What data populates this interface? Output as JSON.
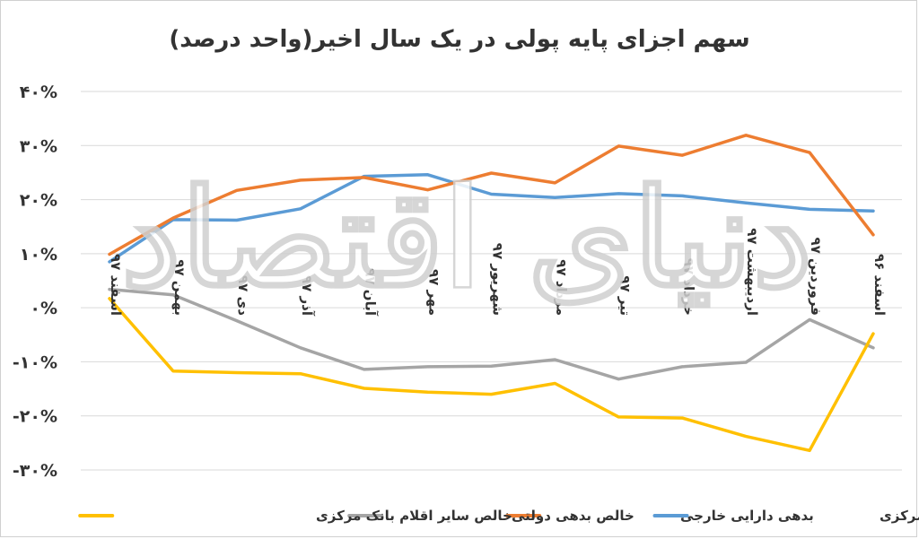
{
  "chart_data": {
    "type": "line",
    "title": "سهم اجزای پایه پولی در یک سال اخیر(واحد درصد)",
    "watermark": "دنیای اقتصاد",
    "ylim": [
      -30,
      40
    ],
    "yticks": [
      40,
      30,
      20,
      10,
      0,
      -10,
      -20,
      -30
    ],
    "ytick_labels": [
      "۴۰%",
      "۳۰%",
      "۲۰%",
      "۱۰%",
      "۰%",
      "-۱۰%",
      "-۲۰%",
      "-۳۰%"
    ],
    "categories": [
      "اسفند ۹۶",
      "فروردین ۹۷",
      "اردیبهشت ۹۷",
      "خرداد ۹۷",
      "تیر ۹۷",
      "مرداد ۹۷",
      "شهریور ۹۷",
      "مهر ۹۷",
      "آبان ۹۷",
      "آذر ۹۷",
      "دی ۹۷",
      "بهمن ۹۷",
      "اسفند ۹۷"
    ],
    "grid": true,
    "legend_position": "bottom",
    "series": [
      {
        "name": "بدهی بانک‌ها به بانک مرکزی",
        "color": "#5B9BD5",
        "values": [
          17.9,
          18.2,
          19.4,
          20.7,
          21.1,
          20.4,
          21.0,
          24.6,
          24.3,
          18.3,
          16.2,
          16.3,
          8.5
        ]
      },
      {
        "name": "بدهی دارایی خارجی",
        "color": "#ED7D31",
        "values": [
          13.5,
          28.7,
          31.9,
          28.2,
          29.9,
          23.1,
          24.9,
          21.8,
          24.1,
          23.6,
          21.7,
          16.6,
          9.9
        ]
      },
      {
        "name": "خالص بدهی دولتی",
        "color": "#A5A5A5",
        "values": [
          -7.4,
          -2.2,
          -10.1,
          -10.9,
          -13.2,
          -9.6,
          -10.8,
          -10.9,
          -11.4,
          -7.4,
          -2.4,
          2.4,
          3.4
        ]
      },
      {
        "name": "خالص سایر اقلام بانک مرکزی",
        "color": "#FFC000",
        "values": [
          -4.8,
          -26.4,
          -23.8,
          -20.4,
          -20.2,
          -14.0,
          -16.0,
          -15.6,
          -14.9,
          -12.2,
          -12.0,
          -11.7,
          1.7
        ]
      }
    ]
  }
}
